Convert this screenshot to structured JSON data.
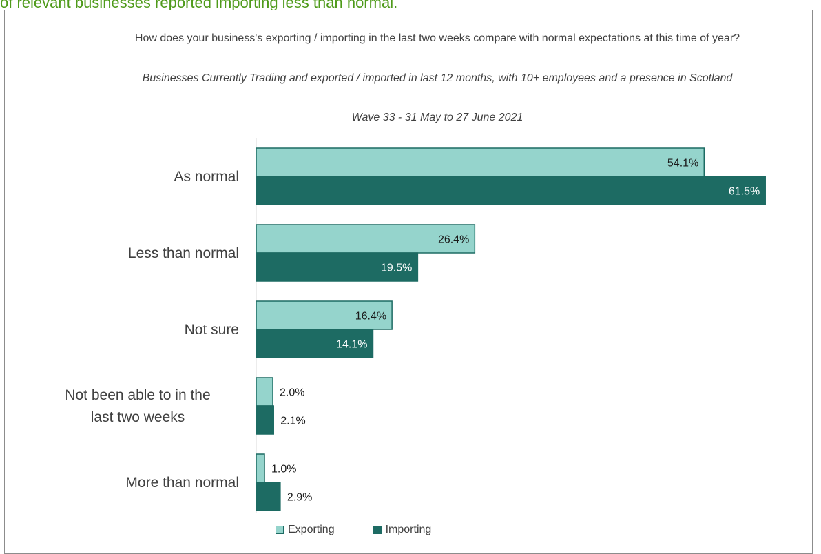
{
  "page": {
    "heading": "of relevant businesses reported importing less than normal."
  },
  "chart_data": {
    "type": "bar",
    "orientation": "horizontal",
    "title": "How does your business's exporting / importing in the last two weeks compare with normal expectations at this time of year?",
    "subtitle": "Businesses Currently Trading and exported / imported in last 12 months, with 10+ employees and a presence in Scotland",
    "subtitle2": "Wave 33 - 31 May to 27 June 2021",
    "categories": [
      "As normal",
      "Less than normal",
      "Not sure",
      "Not been able to in the last two weeks",
      "More than normal"
    ],
    "series": [
      {
        "name": "Exporting",
        "values": [
          54.1,
          26.4,
          16.4,
          2.0,
          1.0
        ],
        "labels": [
          "54.1%",
          "26.4%",
          "16.4%",
          "2.0%",
          "1.0%"
        ],
        "color": "#95d4cc",
        "border": "#1d6b63"
      },
      {
        "name": "Importing",
        "values": [
          61.5,
          19.5,
          14.1,
          2.1,
          2.9
        ],
        "labels": [
          "61.5%",
          "19.5%",
          "14.1%",
          "2.1%",
          "2.9%"
        ],
        "color": "#1d6b63",
        "border": "#1d6b63"
      }
    ],
    "xlim": [
      0,
      100
    ],
    "grid": false,
    "legend_position": "bottom"
  }
}
